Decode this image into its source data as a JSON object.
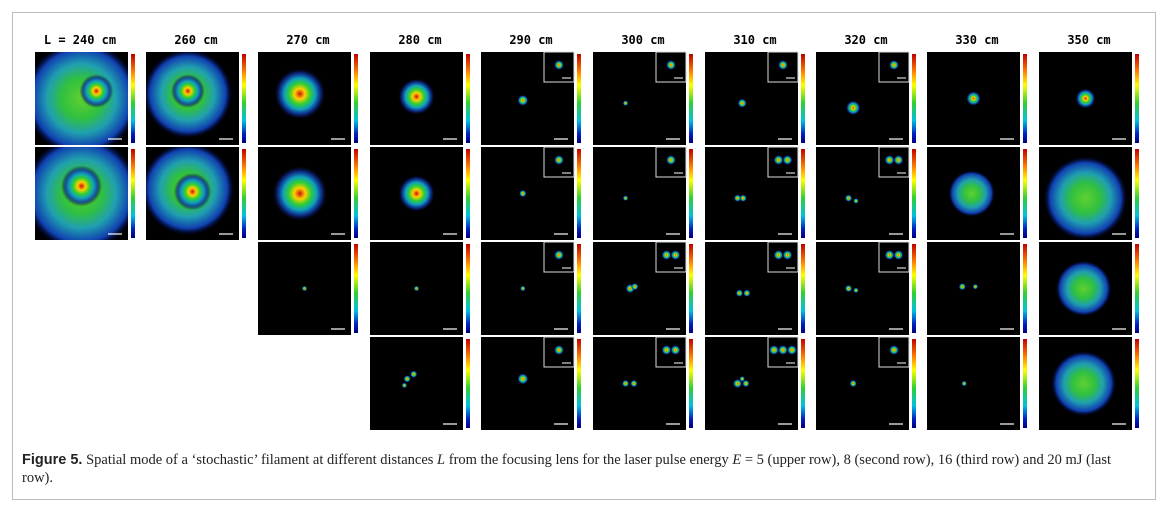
{
  "figure": {
    "columns": [
      "L = 240 cm",
      "260 cm",
      "270 cm",
      "280 cm",
      "290 cm",
      "300 cm",
      "310 cm",
      "320 cm",
      "330 cm",
      "350 cm"
    ],
    "caption": {
      "label": "Figure 5.",
      "parts": [
        "Spatial mode of a ‘stochastic’ filament at different distances ",
        "L",
        " from the focusing lens for the laser pulse energy ",
        "E",
        " = 5 (upper row), 8 (second row), 16 (third row) and 20  mJ (last row)."
      ]
    }
  }
}
